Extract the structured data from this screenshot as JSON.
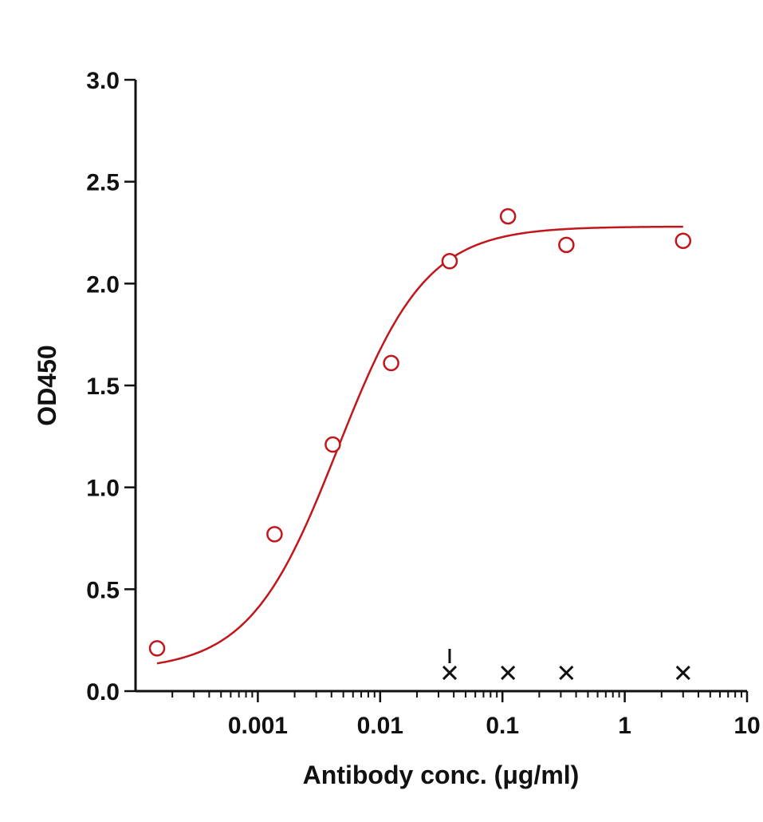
{
  "chart_data": {
    "type": "scatter",
    "xlabel": "Antibody conc. (μg/ml)",
    "ylabel": "OD450",
    "x_scale": "log",
    "xlim": [
      0.0001,
      10
    ],
    "ylim": [
      0,
      3
    ],
    "x_ticks": [
      {
        "value": 0.001,
        "label": "0.001"
      },
      {
        "value": 0.01,
        "label": "0.01"
      },
      {
        "value": 0.1,
        "label": "0.1"
      },
      {
        "value": 1,
        "label": "1"
      },
      {
        "value": 10,
        "label": "10"
      }
    ],
    "y_ticks": [
      {
        "value": 0,
        "label": "0.0"
      },
      {
        "value": 0.5,
        "label": "0.5"
      },
      {
        "value": 1,
        "label": "1.0"
      },
      {
        "value": 1.5,
        "label": "1.5"
      },
      {
        "value": 2,
        "label": "2.0"
      },
      {
        "value": 2.5,
        "label": "2.5"
      },
      {
        "value": 3,
        "label": "3.0"
      }
    ],
    "grid": false,
    "series": [
      {
        "color": "#c0161c",
        "marker": "open-circle",
        "points": [
          {
            "x": 0.00015,
            "y": 0.21
          },
          {
            "x": 0.00137,
            "y": 0.77
          },
          {
            "x": 0.0041,
            "y": 1.21
          },
          {
            "x": 0.0123,
            "y": 1.61
          },
          {
            "x": 0.037,
            "y": 2.11
          },
          {
            "x": 0.111,
            "y": 2.33
          },
          {
            "x": 0.333,
            "y": 2.19
          },
          {
            "x": 3.0,
            "y": 2.21
          }
        ]
      }
    ],
    "fit_curve": {
      "model": "4PL",
      "bottom": 0.1,
      "top": 2.28,
      "ec50": 0.0045,
      "hill": 1.2,
      "x_range": [
        0.00015,
        3.0
      ],
      "color": "#c0161c"
    },
    "baseline_markers": [
      {
        "x": 0.037,
        "y": 0.09,
        "arrow": true
      },
      {
        "x": 0.111,
        "y": 0.09,
        "arrow": false
      },
      {
        "x": 0.333,
        "y": 0.09,
        "arrow": false
      },
      {
        "x": 3.0,
        "y": 0.09,
        "arrow": false
      }
    ]
  }
}
